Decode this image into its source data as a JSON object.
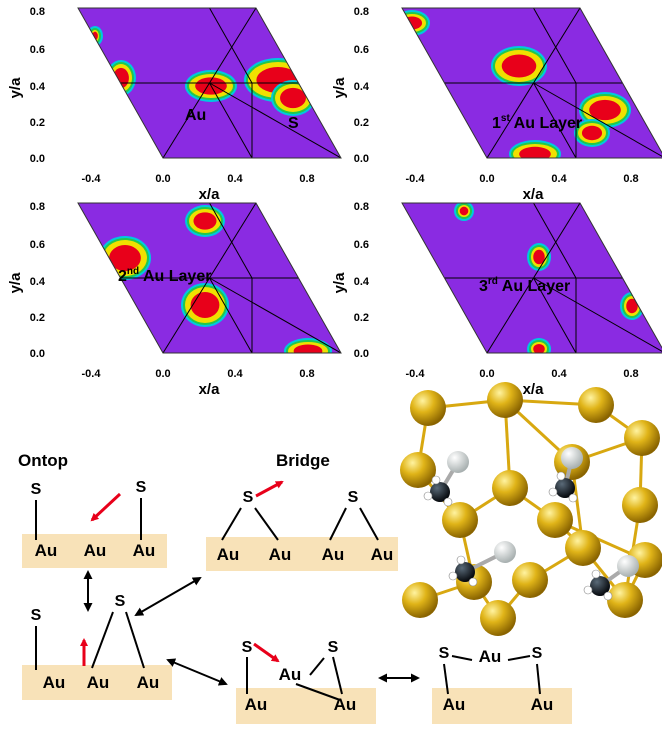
{
  "colors": {
    "background": "#8a2be2",
    "hot": "#e8001a",
    "warm": "#f0e000",
    "mid": "#22c84a",
    "cool": "#00c8e0",
    "substrate": "#f8e2b8",
    "arrow_red": "#e8001a",
    "gold": "#d8a810"
  },
  "panels": [
    {
      "ylabel": "y/a",
      "xlabel": "x/a",
      "xticks": [
        "-0.4",
        "0.0",
        "0.4",
        "0.8"
      ],
      "yticks": [
        "0.8",
        "0.6",
        "0.4",
        "0.2",
        "0.0"
      ],
      "annotations": [
        "Au",
        "S"
      ]
    },
    {
      "ylabel": "y/a",
      "xlabel": "x/a",
      "xticks": [
        "-0.4",
        "0.0",
        "0.4",
        "0.8"
      ],
      "yticks": [
        "0.8",
        "0.6",
        "0.4",
        "0.2",
        "0.0"
      ],
      "annotations": [
        "1st Au Layer"
      ]
    },
    {
      "ylabel": "y/a",
      "xlabel": "x/a",
      "xticks": [
        "-0.4",
        "0.0",
        "0.4",
        "0.8"
      ],
      "yticks": [
        "0.8",
        "0.6",
        "0.4",
        "0.2",
        "0.0"
      ],
      "annotations": [
        "2nd Au Layer"
      ]
    },
    {
      "ylabel": "y/a",
      "xlabel": "x/a",
      "xticks": [
        "-0.4",
        "0.0",
        "0.4",
        "0.8"
      ],
      "yticks": [
        "0.8",
        "0.6",
        "0.4",
        "0.2",
        "0.0"
      ],
      "annotations": [
        "3rd Au Layer"
      ]
    }
  ],
  "mechanism": {
    "ontop_title": "Ontop",
    "bridge_title": "Bridge",
    "atom_s": "S",
    "atom_au": "Au"
  }
}
